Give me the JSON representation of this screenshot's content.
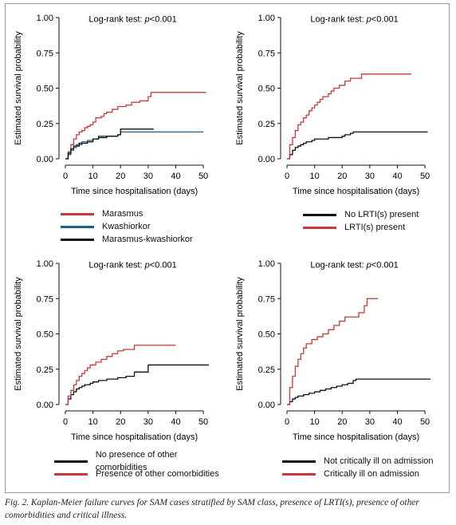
{
  "caption": "Fig. 2. Kaplan-Meier failure curves for SAM cases stratified by SAM class, presence of LRTI(s), presence of other comorbidities and critical illness.",
  "colors": {
    "red": "#c8393b",
    "blue": "#1f5f8b",
    "black": "#111111"
  },
  "chart_data": [
    {
      "type": "line",
      "annotation": "Log-rank test: p<0.001",
      "xlabel": "Time since hospitalisation (days)",
      "ylabel": "Estimated survival probability",
      "xlim": [
        0,
        52
      ],
      "ylim": [
        0,
        1
      ],
      "x_ticks": [
        "0",
        "10",
        "20",
        "30",
        "40",
        "50"
      ],
      "y_ticks": [
        "0.00",
        "0.25",
        "0.50",
        "0.75",
        "1.00"
      ],
      "series": [
        {
          "name": "Marasmus",
          "color": "#c8393b",
          "points": [
            [
              0,
              0
            ],
            [
              1,
              0.05
            ],
            [
              2,
              0.1
            ],
            [
              3,
              0.14
            ],
            [
              4,
              0.17
            ],
            [
              5,
              0.19
            ],
            [
              6,
              0.2
            ],
            [
              7,
              0.22
            ],
            [
              8,
              0.23
            ],
            [
              9,
              0.24
            ],
            [
              10,
              0.26
            ],
            [
              11,
              0.29
            ],
            [
              13,
              0.3
            ],
            [
              14,
              0.32
            ],
            [
              15,
              0.33
            ],
            [
              17,
              0.35
            ],
            [
              19,
              0.37
            ],
            [
              22,
              0.38
            ],
            [
              24,
              0.4
            ],
            [
              27,
              0.41
            ],
            [
              30,
              0.44
            ],
            [
              31,
              0.47
            ],
            [
              51,
              0.47
            ]
          ]
        },
        {
          "name": "Kwashiorkor",
          "color": "#1f5f8b",
          "points": [
            [
              0,
              0
            ],
            [
              1,
              0.03
            ],
            [
              2,
              0.06
            ],
            [
              3,
              0.08
            ],
            [
              4,
              0.1
            ],
            [
              6,
              0.12
            ],
            [
              8,
              0.13
            ],
            [
              10,
              0.14
            ],
            [
              12,
              0.16
            ],
            [
              19,
              0.17
            ],
            [
              20,
              0.19
            ],
            [
              50,
              0.19
            ]
          ]
        },
        {
          "name": "Marasmus-kwashiorkor",
          "color": "#111111",
          "points": [
            [
              0,
              0
            ],
            [
              1,
              0.04
            ],
            [
              2,
              0.07
            ],
            [
              3,
              0.09
            ],
            [
              5,
              0.11
            ],
            [
              8,
              0.12
            ],
            [
              10,
              0.14
            ],
            [
              12,
              0.15
            ],
            [
              15,
              0.16
            ],
            [
              19,
              0.17
            ],
            [
              20,
              0.21
            ],
            [
              32,
              0.21
            ]
          ]
        }
      ]
    },
    {
      "type": "line",
      "annotation": "Log-rank test: p<0.001",
      "xlabel": "Time since hospitalisation (days)",
      "ylabel": "Estimated survival probability",
      "xlim": [
        0,
        52
      ],
      "ylim": [
        0,
        1
      ],
      "x_ticks": [
        "0",
        "10",
        "20",
        "30",
        "40",
        "50"
      ],
      "y_ticks": [
        "0.00",
        "0.25",
        "0.50",
        "0.75",
        "1.00"
      ],
      "series": [
        {
          "name": "No LRTI(s) present",
          "color": "#111111",
          "points": [
            [
              0,
              0
            ],
            [
              1,
              0.03
            ],
            [
              2,
              0.06
            ],
            [
              3,
              0.08
            ],
            [
              4,
              0.09
            ],
            [
              5,
              0.1
            ],
            [
              6,
              0.11
            ],
            [
              7,
              0.12
            ],
            [
              9,
              0.13
            ],
            [
              10,
              0.14
            ],
            [
              15,
              0.15
            ],
            [
              20,
              0.16
            ],
            [
              21,
              0.17
            ],
            [
              23,
              0.18
            ],
            [
              24,
              0.19
            ],
            [
              51,
              0.19
            ]
          ]
        },
        {
          "name": "LRTI(s) present",
          "color": "#c8393b",
          "points": [
            [
              0,
              0
            ],
            [
              1,
              0.1
            ],
            [
              2,
              0.15
            ],
            [
              3,
              0.2
            ],
            [
              4,
              0.24
            ],
            [
              5,
              0.26
            ],
            [
              6,
              0.29
            ],
            [
              7,
              0.31
            ],
            [
              8,
              0.34
            ],
            [
              9,
              0.36
            ],
            [
              10,
              0.38
            ],
            [
              11,
              0.4
            ],
            [
              12,
              0.42
            ],
            [
              13,
              0.44
            ],
            [
              15,
              0.46
            ],
            [
              16,
              0.48
            ],
            [
              17,
              0.5
            ],
            [
              19,
              0.52
            ],
            [
              21,
              0.55
            ],
            [
              23,
              0.57
            ],
            [
              27,
              0.6
            ],
            [
              45,
              0.6
            ]
          ]
        }
      ]
    },
    {
      "type": "line",
      "annotation": "Log-rank test: p<0.001",
      "xlabel": "Time since hospitalisation (days)",
      "ylabel": "Estimated survival probability",
      "xlim": [
        0,
        52
      ],
      "ylim": [
        0,
        1
      ],
      "x_ticks": [
        "0",
        "10",
        "20",
        "30",
        "40",
        "50"
      ],
      "y_ticks": [
        "0.00",
        "0.25",
        "0.50",
        "0.75",
        "1.00"
      ],
      "series": [
        {
          "name": "No presence of other comorbidities",
          "color": "#111111",
          "points": [
            [
              0,
              0
            ],
            [
              1,
              0.04
            ],
            [
              2,
              0.07
            ],
            [
              3,
              0.09
            ],
            [
              4,
              0.11
            ],
            [
              5,
              0.12
            ],
            [
              6,
              0.13
            ],
            [
              7,
              0.14
            ],
            [
              9,
              0.15
            ],
            [
              10,
              0.16
            ],
            [
              12,
              0.17
            ],
            [
              15,
              0.18
            ],
            [
              19,
              0.19
            ],
            [
              22,
              0.2
            ],
            [
              25,
              0.23
            ],
            [
              30,
              0.28
            ],
            [
              52,
              0.28
            ]
          ]
        },
        {
          "name": "Presence of other comorbidities",
          "color": "#c8393b",
          "points": [
            [
              0,
              0
            ],
            [
              1,
              0.06
            ],
            [
              2,
              0.1
            ],
            [
              3,
              0.14
            ],
            [
              4,
              0.17
            ],
            [
              5,
              0.2
            ],
            [
              6,
              0.22
            ],
            [
              7,
              0.24
            ],
            [
              8,
              0.26
            ],
            [
              9,
              0.28
            ],
            [
              11,
              0.3
            ],
            [
              13,
              0.32
            ],
            [
              15,
              0.34
            ],
            [
              17,
              0.36
            ],
            [
              19,
              0.38
            ],
            [
              21,
              0.39
            ],
            [
              25,
              0.42
            ],
            [
              40,
              0.42
            ]
          ]
        }
      ]
    },
    {
      "type": "line",
      "annotation": "Log-rank test: p<0.001",
      "xlabel": "Time since hospitalisation (days)",
      "ylabel": "Estimated survival probability",
      "xlim": [
        0,
        52
      ],
      "ylim": [
        0,
        1
      ],
      "x_ticks": [
        "0",
        "10",
        "20",
        "30",
        "40",
        "50"
      ],
      "y_ticks": [
        "0.00",
        "0.25",
        "0.50",
        "0.75",
        "1.00"
      ],
      "series": [
        {
          "name": "Not critically ill on admission",
          "color": "#111111",
          "points": [
            [
              0,
              0
            ],
            [
              1,
              0.02
            ],
            [
              2,
              0.04
            ],
            [
              3,
              0.05
            ],
            [
              4,
              0.06
            ],
            [
              6,
              0.07
            ],
            [
              8,
              0.08
            ],
            [
              10,
              0.09
            ],
            [
              12,
              0.1
            ],
            [
              14,
              0.11
            ],
            [
              16,
              0.12
            ],
            [
              18,
              0.13
            ],
            [
              20,
              0.14
            ],
            [
              22,
              0.15
            ],
            [
              24,
              0.17
            ],
            [
              25,
              0.18
            ],
            [
              52,
              0.18
            ]
          ]
        },
        {
          "name": "Critically ill on admission",
          "color": "#c8393b",
          "points": [
            [
              0,
              0
            ],
            [
              1,
              0.12
            ],
            [
              2,
              0.2
            ],
            [
              3,
              0.27
            ],
            [
              4,
              0.32
            ],
            [
              5,
              0.36
            ],
            [
              6,
              0.4
            ],
            [
              7,
              0.43
            ],
            [
              9,
              0.46
            ],
            [
              11,
              0.48
            ],
            [
              13,
              0.5
            ],
            [
              15,
              0.53
            ],
            [
              17,
              0.56
            ],
            [
              19,
              0.59
            ],
            [
              21,
              0.62
            ],
            [
              26,
              0.65
            ],
            [
              28,
              0.7
            ],
            [
              29,
              0.75
            ],
            [
              33,
              0.75
            ]
          ]
        }
      ]
    }
  ]
}
